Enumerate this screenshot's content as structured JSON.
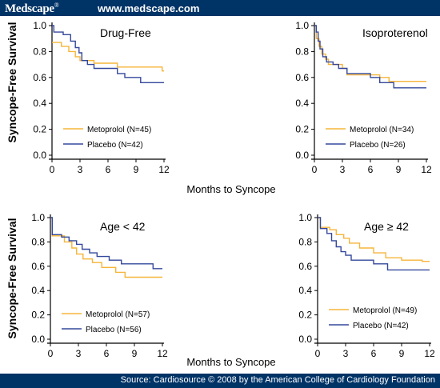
{
  "header": {
    "logo": "Medscape",
    "logo_mark": "®",
    "url": "www.medscape.com"
  },
  "footer": {
    "source": "Source: Cardiosource © 2008 by the American College of Cardiology Foundation"
  },
  "colors": {
    "brand": "#003366",
    "metoprolol": "#f5b53a",
    "placebo": "#34489c"
  },
  "chart_data": [
    {
      "type": "line",
      "title": "Drug-Free",
      "xlabel": "Months to Syncope",
      "ylabel": "Syncope-Free Survival",
      "xlim": [
        0,
        12
      ],
      "ylim": [
        0,
        1
      ],
      "xticks": [
        0,
        3,
        6,
        9,
        12
      ],
      "yticks": [
        0.0,
        0.2,
        0.4,
        0.6,
        0.8,
        1.0
      ],
      "ytick_labels": [
        "0.0",
        "0.2",
        "0.4",
        "0.6",
        "0.8",
        "1.0"
      ],
      "legend_position": "lower-left",
      "series": [
        {
          "name": "Metoprolol (N=45)",
          "color": "#f5b53a",
          "steps": [
            [
              0,
              0.87
            ],
            [
              1.0,
              0.84
            ],
            [
              1.8,
              0.8
            ],
            [
              2.5,
              0.76
            ],
            [
              3.0,
              0.73
            ],
            [
              4.5,
              0.71
            ],
            [
              7.0,
              0.68
            ],
            [
              11.8,
              0.65
            ],
            [
              12,
              0.65
            ]
          ]
        },
        {
          "name": "Placebo (N=42)",
          "color": "#34489c",
          "steps": [
            [
              0,
              1.0
            ],
            [
              0.2,
              0.95
            ],
            [
              1.2,
              0.93
            ],
            [
              2.0,
              0.88
            ],
            [
              2.5,
              0.83
            ],
            [
              2.9,
              0.79
            ],
            [
              3.2,
              0.73
            ],
            [
              3.8,
              0.7
            ],
            [
              4.5,
              0.67
            ],
            [
              7.0,
              0.63
            ],
            [
              7.8,
              0.6
            ],
            [
              9.5,
              0.56
            ],
            [
              12,
              0.56
            ]
          ]
        }
      ]
    },
    {
      "type": "line",
      "title": "Isoproterenol",
      "xlabel": "Months to Syncope",
      "ylabel": "Syncope-Free Survival",
      "xlim": [
        0,
        12
      ],
      "ylim": [
        0,
        1
      ],
      "xticks": [
        0,
        3,
        6,
        9,
        12
      ],
      "yticks": [
        0.0,
        0.2,
        0.4,
        0.6,
        0.8,
        1.0
      ],
      "ytick_labels": [
        "0.0",
        "0.2",
        "0.4",
        "0.6",
        "0.8",
        "1.0"
      ],
      "legend_position": "lower-left",
      "series": [
        {
          "name": "Metoprolol (N=34)",
          "color": "#f5b53a",
          "steps": [
            [
              0,
              1.0
            ],
            [
              0.2,
              0.9
            ],
            [
              0.5,
              0.84
            ],
            [
              0.8,
              0.78
            ],
            [
              1.2,
              0.74
            ],
            [
              1.5,
              0.7
            ],
            [
              3.0,
              0.67
            ],
            [
              3.5,
              0.62
            ],
            [
              7.0,
              0.6
            ],
            [
              8.0,
              0.57
            ],
            [
              12,
              0.57
            ]
          ]
        },
        {
          "name": "Placebo (N=26)",
          "color": "#34489c",
          "steps": [
            [
              0,
              1.0
            ],
            [
              0.2,
              0.95
            ],
            [
              0.4,
              0.88
            ],
            [
              0.6,
              0.82
            ],
            [
              0.9,
              0.76
            ],
            [
              1.3,
              0.72
            ],
            [
              2.0,
              0.7
            ],
            [
              2.6,
              0.67
            ],
            [
              3.5,
              0.63
            ],
            [
              6.0,
              0.6
            ],
            [
              7.0,
              0.56
            ],
            [
              8.5,
              0.52
            ],
            [
              12,
              0.52
            ]
          ]
        }
      ]
    },
    {
      "type": "line",
      "title": "Age < 42",
      "xlabel": "Months to Syncope",
      "ylabel": "Syncope-Free Survival",
      "xlim": [
        0,
        12
      ],
      "ylim": [
        0,
        1
      ],
      "xticks": [
        0,
        3,
        6,
        9,
        12
      ],
      "yticks": [
        0.0,
        0.2,
        0.4,
        0.6,
        0.8,
        1.0
      ],
      "ytick_labels": [
        "0.0",
        "0.2",
        "0.4",
        "0.6",
        "0.8",
        "1.0"
      ],
      "legend_position": "lower-left",
      "series": [
        {
          "name": "Metoprolol (N=57)",
          "color": "#f5b53a",
          "steps": [
            [
              0,
              1.0
            ],
            [
              0.2,
              0.85
            ],
            [
              1.5,
              0.8
            ],
            [
              2.3,
              0.75
            ],
            [
              2.8,
              0.7
            ],
            [
              3.5,
              0.66
            ],
            [
              4.5,
              0.63
            ],
            [
              5.5,
              0.59
            ],
            [
              7.0,
              0.55
            ],
            [
              8.0,
              0.51
            ],
            [
              12,
              0.51
            ]
          ]
        },
        {
          "name": "Placebo (N=56)",
          "color": "#34489c",
          "steps": [
            [
              0,
              1.0
            ],
            [
              0.2,
              0.86
            ],
            [
              1.2,
              0.84
            ],
            [
              2.0,
              0.81
            ],
            [
              2.8,
              0.78
            ],
            [
              3.4,
              0.74
            ],
            [
              4.2,
              0.71
            ],
            [
              5.0,
              0.68
            ],
            [
              6.3,
              0.65
            ],
            [
              7.6,
              0.62
            ],
            [
              11.0,
              0.58
            ],
            [
              12,
              0.58
            ]
          ]
        }
      ]
    },
    {
      "type": "line",
      "title": "Age ≥ 42",
      "xlabel": "Months to Syncope",
      "ylabel": "Syncope-Free Survival",
      "xlim": [
        0,
        12
      ],
      "ylim": [
        0,
        1
      ],
      "xticks": [
        0,
        3,
        6,
        9,
        12
      ],
      "yticks": [
        0.0,
        0.2,
        0.4,
        0.6,
        0.8,
        1.0
      ],
      "ytick_labels": [
        "0.0",
        "0.2",
        "0.4",
        "0.6",
        "0.8",
        "1.0"
      ],
      "legend_position": "lower-left",
      "series": [
        {
          "name": "Metoprolol (N=49)",
          "color": "#f5b53a",
          "steps": [
            [
              0,
              1.0
            ],
            [
              0.3,
              0.92
            ],
            [
              1.3,
              0.9
            ],
            [
              2.0,
              0.86
            ],
            [
              2.8,
              0.83
            ],
            [
              3.4,
              0.79
            ],
            [
              4.5,
              0.75
            ],
            [
              6.0,
              0.71
            ],
            [
              7.3,
              0.67
            ],
            [
              9.0,
              0.65
            ],
            [
              11.2,
              0.64
            ],
            [
              12,
              0.64
            ]
          ]
        },
        {
          "name": "Placebo (N=42)",
          "color": "#34489c",
          "steps": [
            [
              0,
              1.0
            ],
            [
              0.3,
              0.91
            ],
            [
              1.0,
              0.87
            ],
            [
              1.5,
              0.81
            ],
            [
              2.0,
              0.76
            ],
            [
              2.5,
              0.72
            ],
            [
              3.0,
              0.69
            ],
            [
              3.6,
              0.65
            ],
            [
              6.0,
              0.62
            ],
            [
              7.5,
              0.57
            ],
            [
              12,
              0.57
            ]
          ]
        }
      ]
    }
  ]
}
